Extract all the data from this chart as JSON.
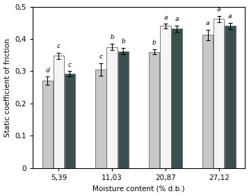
{
  "categories": [
    "5,39",
    "11,03",
    "20,87",
    "27,12"
  ],
  "light_values": [
    0.27,
    0.305,
    0.36,
    0.412
  ],
  "light_errors": [
    0.013,
    0.02,
    0.008,
    0.016
  ],
  "white_values": [
    0.348,
    0.375,
    0.44,
    0.462
  ],
  "white_errors": [
    0.01,
    0.01,
    0.007,
    0.01
  ],
  "dark_values": [
    0.292,
    0.362,
    0.432,
    0.44
  ],
  "dark_errors": [
    0.008,
    0.01,
    0.01,
    0.01
  ],
  "light_color": "#c8c8c8",
  "white_color": "#f5f5f5",
  "dark_color": "#3a5050",
  "light_labels": [
    "d",
    "c",
    "b",
    "a"
  ],
  "white_labels": [
    "c",
    "b",
    "a",
    "a"
  ],
  "dark_labels": [
    "c",
    "b",
    "a",
    "a"
  ],
  "xlabel": "Moisture content (% d.b.)",
  "ylabel": "Static coefficient of friction",
  "ylim": [
    0,
    0.5
  ],
  "yticks": [
    0,
    0.1,
    0.2,
    0.3,
    0.4,
    0.5
  ],
  "ytick_labels": [
    "0",
    "0,1",
    "0,2",
    "0,3",
    "0,4",
    "0,5"
  ]
}
